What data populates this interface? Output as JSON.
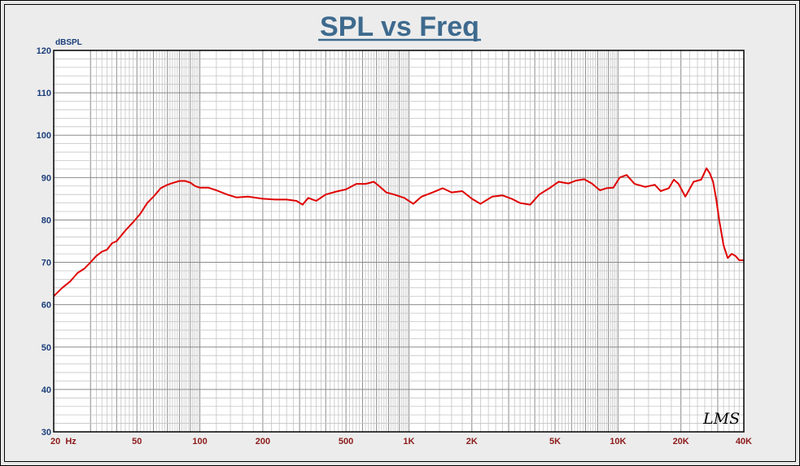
{
  "chart_data": {
    "type": "line",
    "title": "SPL vs Freq",
    "ylabel": "dBSPL",
    "xlabel": "",
    "x_scale": "log",
    "xlim": [
      20,
      40000
    ],
    "ylim": [
      30,
      120
    ],
    "grid": true,
    "x_ticks": [
      {
        "value": 20,
        "label": "20  Hz"
      },
      {
        "value": 50,
        "label": "50"
      },
      {
        "value": 100,
        "label": "100"
      },
      {
        "value": 200,
        "label": "200"
      },
      {
        "value": 500,
        "label": "500"
      },
      {
        "value": 1000,
        "label": "1K"
      },
      {
        "value": 2000,
        "label": "2K"
      },
      {
        "value": 5000,
        "label": "5K"
      },
      {
        "value": 10000,
        "label": "10K"
      },
      {
        "value": 20000,
        "label": "20K"
      },
      {
        "value": 40000,
        "label": "40K"
      }
    ],
    "y_ticks": [
      30,
      40,
      50,
      60,
      70,
      80,
      90,
      100,
      110,
      120
    ],
    "watermark": "LMS",
    "series": [
      {
        "color": "#e00000",
        "x": [
          20,
          22,
          24,
          26,
          28,
          30,
          32,
          34,
          36,
          38,
          40,
          44,
          48,
          52,
          56,
          60,
          65,
          70,
          75,
          80,
          85,
          90,
          95,
          100,
          110,
          120,
          135,
          150,
          170,
          200,
          230,
          260,
          290,
          310,
          330,
          360,
          400,
          450,
          500,
          560,
          620,
          680,
          720,
          780,
          850,
          950,
          1050,
          1150,
          1300,
          1450,
          1600,
          1800,
          2000,
          2200,
          2500,
          2800,
          3100,
          3400,
          3800,
          4200,
          4700,
          5200,
          5800,
          6300,
          6900,
          7500,
          8200,
          8800,
          9500,
          10200,
          11000,
          12000,
          13500,
          15000,
          16000,
          17500,
          18500,
          19500,
          21000,
          23000,
          25000,
          26500,
          27500,
          28500,
          29500,
          30500,
          32000,
          33500,
          35000,
          36500,
          38000,
          39000,
          40000
        ],
        "y": [
          62,
          64,
          65.5,
          67.5,
          68.5,
          70,
          71.5,
          72.5,
          73,
          74.5,
          75,
          77.5,
          79.5,
          81.5,
          84,
          85.5,
          87.5,
          88.3,
          88.8,
          89.2,
          89.2,
          88.8,
          88,
          87.6,
          87.6,
          87,
          86,
          85.3,
          85.5,
          85,
          84.8,
          84.8,
          84.5,
          83.6,
          85.2,
          84.5,
          86,
          86.7,
          87.2,
          88.5,
          88.5,
          89,
          88,
          86.5,
          86,
          85.2,
          83.8,
          85.5,
          86.5,
          87.5,
          86.5,
          86.8,
          85,
          83.8,
          85.5,
          85.8,
          85,
          84,
          83.6,
          86,
          87.5,
          89,
          88.6,
          89.3,
          89.6,
          88.6,
          87,
          87.5,
          87.6,
          90,
          90.6,
          88.5,
          87.8,
          88.3,
          86.8,
          87.5,
          89.5,
          88.5,
          85.5,
          89,
          89.5,
          92.2,
          91,
          89,
          85,
          80,
          74,
          71,
          72,
          71.5,
          70.5,
          70.5,
          70.5
        ]
      }
    ]
  }
}
